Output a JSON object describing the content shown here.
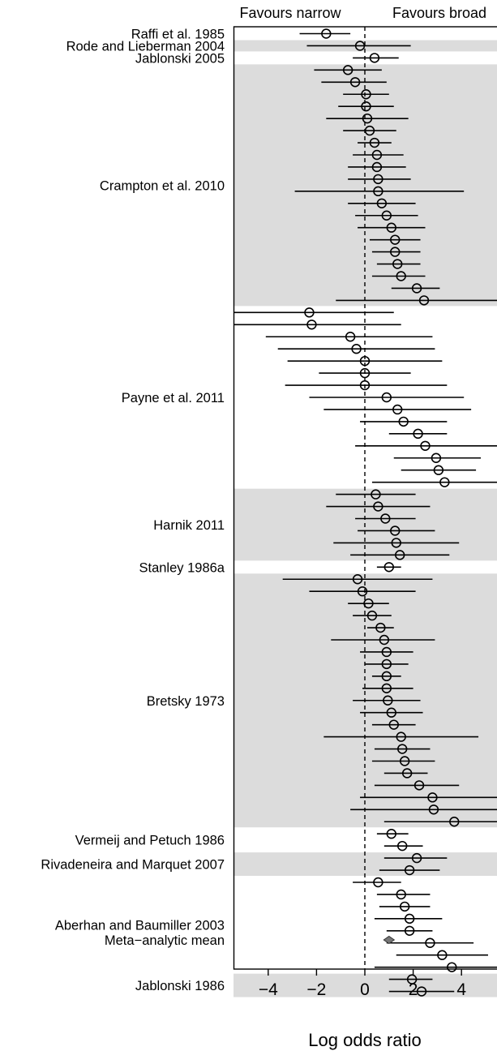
{
  "chart_data": {
    "type": "forest",
    "xlabel": "Log odds ratio",
    "xlim": [
      -5.4,
      5.4
    ],
    "xticks": [
      -4,
      -2,
      0,
      2,
      4
    ],
    "xtick_labels": [
      "−4",
      "−2",
      "0",
      "2",
      "4"
    ],
    "top_labels": {
      "left": "Favours narrow",
      "right": "Favours broad"
    },
    "reference_line": 0,
    "studies": [
      {
        "name": "Raffi et al. 1985",
        "shaded": false,
        "estimates": [
          {
            "est": -1.6,
            "lo": -2.7,
            "hi": -0.6
          }
        ]
      },
      {
        "name": "Rode and Lieberman 2004",
        "shaded": true,
        "estimates": [
          {
            "est": -0.2,
            "lo": -2.4,
            "hi": 1.9
          }
        ]
      },
      {
        "name": "Jablonski 2005",
        "shaded": false,
        "estimates": [
          {
            "est": 0.4,
            "lo": -0.5,
            "hi": 1.4
          }
        ]
      },
      {
        "name": "Crampton et al. 2010",
        "shaded": true,
        "estimates": [
          {
            "est": -0.7,
            "lo": -2.1,
            "hi": 0.7
          },
          {
            "est": -0.4,
            "lo": -1.8,
            "hi": 0.9
          },
          {
            "est": 0.05,
            "lo": -0.9,
            "hi": 1.0
          },
          {
            "est": 0.05,
            "lo": -1.1,
            "hi": 1.2
          },
          {
            "est": 0.1,
            "lo": -1.6,
            "hi": 1.8
          },
          {
            "est": 0.2,
            "lo": -0.9,
            "hi": 1.3
          },
          {
            "est": 0.4,
            "lo": -0.3,
            "hi": 1.1
          },
          {
            "est": 0.5,
            "lo": -0.5,
            "hi": 1.6
          },
          {
            "est": 0.5,
            "lo": -0.7,
            "hi": 1.7
          },
          {
            "est": 0.55,
            "lo": -0.7,
            "hi": 1.9
          },
          {
            "est": 0.55,
            "lo": -2.9,
            "hi": 4.1
          },
          {
            "est": 0.7,
            "lo": -0.7,
            "hi": 2.1
          },
          {
            "est": 0.9,
            "lo": -0.4,
            "hi": 2.2
          },
          {
            "est": 1.1,
            "lo": -0.3,
            "hi": 2.5
          },
          {
            "est": 1.25,
            "lo": 0.2,
            "hi": 2.3
          },
          {
            "est": 1.25,
            "lo": 0.3,
            "hi": 2.3
          },
          {
            "est": 1.35,
            "lo": 0.5,
            "hi": 2.3
          },
          {
            "est": 1.5,
            "lo": 0.3,
            "hi": 2.5
          },
          {
            "est": 2.15,
            "lo": 1.1,
            "hi": 3.1
          },
          {
            "est": 2.45,
            "lo": -1.2,
            "hi": 5.6
          }
        ]
      },
      {
        "name": "Payne et al. 2011",
        "shaded": false,
        "estimates": [
          {
            "est": -2.3,
            "lo": -5.6,
            "hi": 1.2
          },
          {
            "est": -2.2,
            "lo": -5.6,
            "hi": 1.5
          },
          {
            "est": -0.6,
            "lo": -4.1,
            "hi": 2.8
          },
          {
            "est": -0.35,
            "lo": -3.6,
            "hi": 2.9
          },
          {
            "est": 0.0,
            "lo": -3.2,
            "hi": 3.2
          },
          {
            "est": 0.0,
            "lo": -1.9,
            "hi": 1.9
          },
          {
            "est": 0.0,
            "lo": -3.3,
            "hi": 3.4
          },
          {
            "est": 0.9,
            "lo": -2.3,
            "hi": 4.1
          },
          {
            "est": 1.35,
            "lo": -1.7,
            "hi": 4.4
          },
          {
            "est": 1.6,
            "lo": -0.2,
            "hi": 3.4
          },
          {
            "est": 2.2,
            "lo": 1.0,
            "hi": 3.4
          },
          {
            "est": 2.5,
            "lo": -0.4,
            "hi": 5.6
          },
          {
            "est": 2.95,
            "lo": 1.2,
            "hi": 4.8
          },
          {
            "est": 3.05,
            "lo": 1.5,
            "hi": 4.6
          },
          {
            "est": 3.3,
            "lo": 0.3,
            "hi": 5.6
          }
        ]
      },
      {
        "name": "Harnik 2011",
        "shaded": true,
        "estimates": [
          {
            "est": 0.45,
            "lo": -1.2,
            "hi": 2.1
          },
          {
            "est": 0.55,
            "lo": -1.6,
            "hi": 2.7
          },
          {
            "est": 0.85,
            "lo": -0.4,
            "hi": 2.1
          },
          {
            "est": 1.25,
            "lo": -0.3,
            "hi": 2.9
          },
          {
            "est": 1.3,
            "lo": -1.3,
            "hi": 3.9
          },
          {
            "est": 1.45,
            "lo": -0.6,
            "hi": 3.5
          }
        ]
      },
      {
        "name": "Stanley 1986a",
        "shaded": false,
        "estimates": [
          {
            "est": 1.0,
            "lo": 0.5,
            "hi": 1.5
          }
        ]
      },
      {
        "name": "Bretsky 1973",
        "shaded": true,
        "estimates": [
          {
            "est": -0.3,
            "lo": -3.4,
            "hi": 2.8
          },
          {
            "est": -0.1,
            "lo": -2.3,
            "hi": 2.1
          },
          {
            "est": 0.15,
            "lo": -0.7,
            "hi": 1.0
          },
          {
            "est": 0.3,
            "lo": -0.5,
            "hi": 1.1
          },
          {
            "est": 0.65,
            "lo": 0.1,
            "hi": 1.2
          },
          {
            "est": 0.8,
            "lo": -1.4,
            "hi": 2.9
          },
          {
            "est": 0.9,
            "lo": -0.2,
            "hi": 2.0
          },
          {
            "est": 0.9,
            "lo": 0.0,
            "hi": 1.8
          },
          {
            "est": 0.9,
            "lo": 0.3,
            "hi": 1.5
          },
          {
            "est": 0.9,
            "lo": -0.1,
            "hi": 2.0
          },
          {
            "est": 0.95,
            "lo": -0.5,
            "hi": 2.3
          },
          {
            "est": 1.1,
            "lo": -0.2,
            "hi": 2.4
          },
          {
            "est": 1.2,
            "lo": 0.3,
            "hi": 2.1
          },
          {
            "est": 1.5,
            "lo": -1.7,
            "hi": 4.7
          },
          {
            "est": 1.55,
            "lo": 0.4,
            "hi": 2.7
          },
          {
            "est": 1.65,
            "lo": 0.3,
            "hi": 2.9
          },
          {
            "est": 1.75,
            "lo": 0.8,
            "hi": 2.6
          },
          {
            "est": 2.25,
            "lo": 0.4,
            "hi": 3.9
          },
          {
            "est": 2.8,
            "lo": -0.2,
            "hi": 5.6
          },
          {
            "est": 2.85,
            "lo": -0.6,
            "hi": 5.6
          },
          {
            "est": 3.7,
            "lo": 0.8,
            "hi": 5.6
          }
        ]
      },
      {
        "name": "Vermeij and Petuch 1986",
        "shaded": false,
        "estimates": [
          {
            "est": 1.1,
            "lo": 0.5,
            "hi": 1.8
          },
          {
            "est": 1.55,
            "lo": 0.8,
            "hi": 2.4
          }
        ]
      },
      {
        "name": "Rivadeneira and Marquet 2007",
        "shaded": true,
        "estimates": [
          {
            "est": 2.15,
            "lo": 0.8,
            "hi": 3.4
          },
          {
            "est": 1.85,
            "lo": 0.6,
            "hi": 3.1
          }
        ]
      },
      {
        "name": "Aberhan and Baumiller 2003",
        "shaded": false,
        "estimates": [
          {
            "est": 0.55,
            "lo": -0.5,
            "hi": 1.5
          },
          {
            "est": 1.5,
            "lo": 0.5,
            "hi": 2.7
          },
          {
            "est": 1.65,
            "lo": 0.6,
            "hi": 2.7
          },
          {
            "est": 1.85,
            "lo": 0.4,
            "hi": 3.2
          },
          {
            "est": 1.85,
            "lo": 0.9,
            "hi": 2.8
          },
          {
            "est": 2.7,
            "lo": 0.9,
            "hi": 4.5
          },
          {
            "est": 3.2,
            "lo": 1.3,
            "hi": 5.1
          },
          {
            "est": 3.6,
            "lo": 0.4,
            "hi": 5.6
          }
        ]
      },
      {
        "name": "Jablonski 1986",
        "shaded": true,
        "estimates": [
          {
            "est": 1.95,
            "lo": 1.0,
            "hi": 2.8
          },
          {
            "est": 2.35,
            "lo": 1.0,
            "hi": 3.7
          }
        ]
      }
    ],
    "summary": {
      "name": "Meta−analytic mean",
      "est": 1.0
    }
  }
}
